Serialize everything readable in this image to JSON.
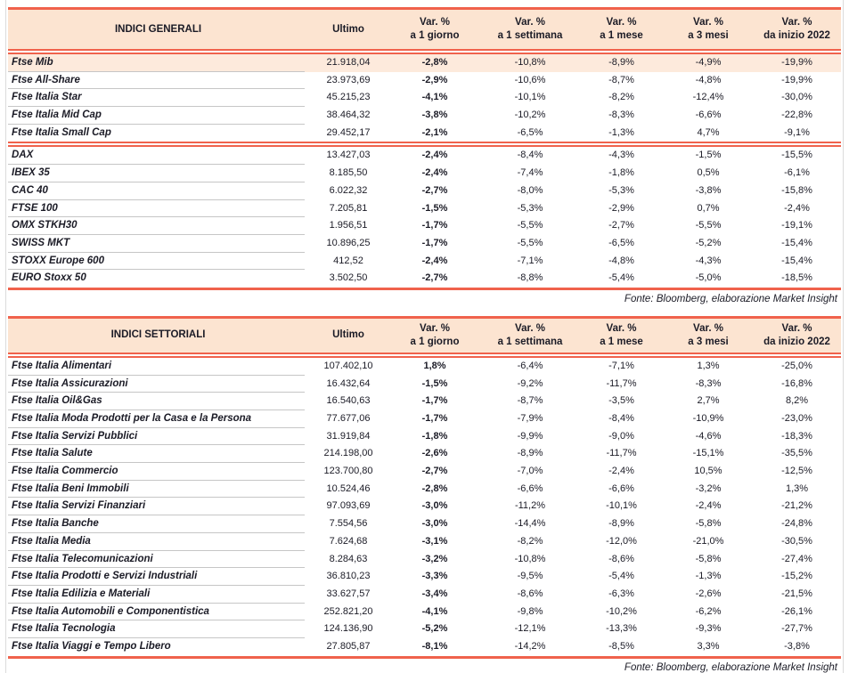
{
  "colors": {
    "accent_red": "#f0624c",
    "header_bg": "#fce4d1",
    "highlight_row_bg": "#fdeadc",
    "text_ink": "#1b1b26",
    "row_separator": "#c6c6c6",
    "frame_border": "#dcdcdc"
  },
  "tables": [
    {
      "header": {
        "title": "INDICI GENERALI",
        "ultimo_label": "Ultimo",
        "var_label": "Var. %",
        "periods": [
          "a 1 giorno",
          "a 1 settimana",
          "a 1 mese",
          "a 3 mesi",
          "da inizio 2022"
        ]
      },
      "highlight_row": 0,
      "divider_after": 4,
      "rows": [
        {
          "name": "Ftse Mib",
          "values": [
            "21.918,04",
            "-2,8%",
            "-10,8%",
            "-8,9%",
            "-4,9%",
            "-19,9%"
          ]
        },
        {
          "name": "Ftse All-Share",
          "values": [
            "23.973,69",
            "-2,9%",
            "-10,6%",
            "-8,7%",
            "-4,8%",
            "-19,9%"
          ]
        },
        {
          "name": "Ftse Italia Star",
          "values": [
            "45.215,23",
            "-4,1%",
            "-10,1%",
            "-8,2%",
            "-12,4%",
            "-30,0%"
          ]
        },
        {
          "name": "Ftse Italia Mid Cap",
          "values": [
            "38.464,32",
            "-3,8%",
            "-10,2%",
            "-8,3%",
            "-6,6%",
            "-22,8%"
          ]
        },
        {
          "name": "Ftse Italia Small Cap",
          "values": [
            "29.452,17",
            "-2,1%",
            "-6,5%",
            "-1,3%",
            "4,7%",
            "-9,1%"
          ]
        },
        {
          "name": "DAX",
          "values": [
            "13.427,03",
            "-2,4%",
            "-8,4%",
            "-4,3%",
            "-1,5%",
            "-15,5%"
          ]
        },
        {
          "name": "IBEX 35",
          "values": [
            "8.185,50",
            "-2,4%",
            "-7,4%",
            "-1,8%",
            "0,5%",
            "-6,1%"
          ]
        },
        {
          "name": "CAC 40",
          "values": [
            "6.022,32",
            "-2,7%",
            "-8,0%",
            "-5,3%",
            "-3,8%",
            "-15,8%"
          ]
        },
        {
          "name": "FTSE 100",
          "values": [
            "7.205,81",
            "-1,5%",
            "-5,3%",
            "-2,9%",
            "0,7%",
            "-2,4%"
          ]
        },
        {
          "name": "OMX STKH30",
          "values": [
            "1.956,51",
            "-1,7%",
            "-5,5%",
            "-2,7%",
            "-5,5%",
            "-19,1%"
          ]
        },
        {
          "name": "SWISS MKT",
          "values": [
            "10.896,25",
            "-1,7%",
            "-5,5%",
            "-6,5%",
            "-5,2%",
            "-15,4%"
          ]
        },
        {
          "name": "STOXX Europe 600",
          "values": [
            "412,52",
            "-2,4%",
            "-7,1%",
            "-4,8%",
            "-4,3%",
            "-15,4%"
          ]
        },
        {
          "name": "EURO Stoxx 50",
          "values": [
            "3.502,50",
            "-2,7%",
            "-8,8%",
            "-5,4%",
            "-5,0%",
            "-18,5%"
          ]
        }
      ],
      "fonte": "Fonte: Bloomberg, elaborazione Market Insight"
    },
    {
      "header": {
        "title": "INDICI SETTORIALI",
        "ultimo_label": "Ultimo",
        "var_label": "Var. %",
        "periods": [
          "a 1 giorno",
          "a 1 settimana",
          "a 1 mese",
          "a 3 mesi",
          "da inizio 2022"
        ]
      },
      "highlight_row": null,
      "divider_after": null,
      "rows": [
        {
          "name": "Ftse Italia Alimentari",
          "values": [
            "107.402,10",
            "1,8%",
            "-6,4%",
            "-7,1%",
            "1,3%",
            "-25,0%"
          ]
        },
        {
          "name": "Ftse Italia Assicurazioni",
          "values": [
            "16.432,64",
            "-1,5%",
            "-9,2%",
            "-11,7%",
            "-8,3%",
            "-16,8%"
          ]
        },
        {
          "name": "Ftse Italia Oil&Gas",
          "values": [
            "16.540,63",
            "-1,7%",
            "-8,7%",
            "-3,5%",
            "2,7%",
            "8,2%"
          ]
        },
        {
          "name": "Ftse Italia Moda Prodotti per la Casa e la Persona",
          "values": [
            "77.677,06",
            "-1,7%",
            "-7,9%",
            "-8,4%",
            "-10,9%",
            "-23,0%"
          ]
        },
        {
          "name": "Ftse Italia Servizi Pubblici",
          "values": [
            "31.919,84",
            "-1,8%",
            "-9,9%",
            "-9,0%",
            "-4,6%",
            "-18,3%"
          ]
        },
        {
          "name": "Ftse Italia Salute",
          "values": [
            "214.198,00",
            "-2,6%",
            "-8,9%",
            "-11,7%",
            "-15,1%",
            "-35,5%"
          ]
        },
        {
          "name": "Ftse Italia Commercio",
          "values": [
            "123.700,80",
            "-2,7%",
            "-7,0%",
            "-2,4%",
            "10,5%",
            "-12,5%"
          ]
        },
        {
          "name": "Ftse Italia Beni Immobili",
          "values": [
            "10.524,46",
            "-2,8%",
            "-6,6%",
            "-6,6%",
            "-3,2%",
            "1,3%"
          ]
        },
        {
          "name": "Ftse Italia Servizi Finanziari",
          "values": [
            "97.093,69",
            "-3,0%",
            "-11,2%",
            "-10,1%",
            "-2,4%",
            "-21,2%"
          ]
        },
        {
          "name": "Ftse Italia Banche",
          "values": [
            "7.554,56",
            "-3,0%",
            "-14,4%",
            "-8,9%",
            "-5,8%",
            "-24,8%"
          ]
        },
        {
          "name": "Ftse Italia Media",
          "values": [
            "7.624,68",
            "-3,1%",
            "-8,2%",
            "-12,0%",
            "-21,0%",
            "-30,5%"
          ]
        },
        {
          "name": "Ftse Italia Telecomunicazioni",
          "values": [
            "8.284,63",
            "-3,2%",
            "-10,8%",
            "-8,6%",
            "-5,8%",
            "-27,4%"
          ]
        },
        {
          "name": "Ftse Italia Prodotti e Servizi Industriali",
          "values": [
            "36.810,23",
            "-3,3%",
            "-9,5%",
            "-5,4%",
            "-1,3%",
            "-15,2%"
          ]
        },
        {
          "name": "Ftse Italia Edilizia e Materiali",
          "values": [
            "33.627,57",
            "-3,4%",
            "-8,6%",
            "-6,3%",
            "-2,6%",
            "-21,5%"
          ]
        },
        {
          "name": "Ftse Italia Automobili e Componentistica",
          "values": [
            "252.821,20",
            "-4,1%",
            "-9,8%",
            "-10,2%",
            "-6,2%",
            "-26,1%"
          ]
        },
        {
          "name": "Ftse Italia Tecnologia",
          "values": [
            "124.136,90",
            "-5,2%",
            "-12,1%",
            "-13,3%",
            "-9,3%",
            "-27,7%"
          ]
        },
        {
          "name": "Ftse Italia Viaggi e Tempo Libero",
          "values": [
            "27.805,87",
            "-8,1%",
            "-14,2%",
            "-8,5%",
            "3,3%",
            "-3,8%"
          ]
        }
      ],
      "fonte": "Fonte: Bloomberg, elaborazione Market Insight"
    }
  ]
}
